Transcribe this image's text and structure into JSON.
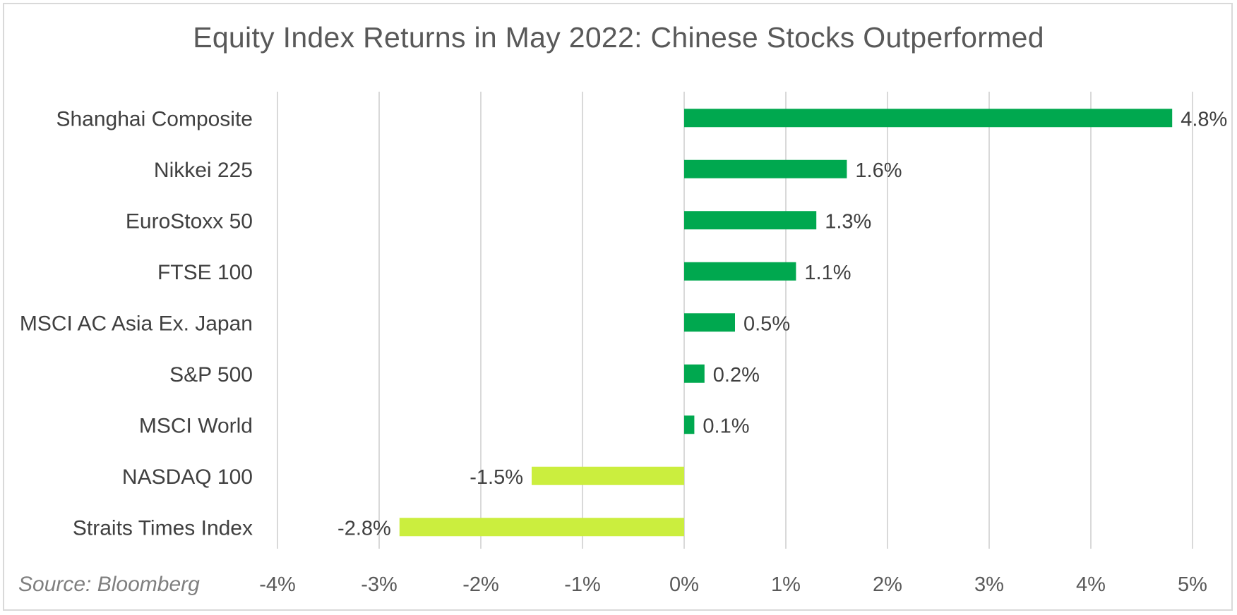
{
  "chart_data": {
    "type": "bar",
    "orientation": "horizontal",
    "title": "Equity Index Returns in May 2022: Chinese Stocks Outperformed",
    "source": "Source: Bloomberg",
    "categories": [
      "Shanghai Composite",
      "Nikkei 225",
      "EuroStoxx 50",
      "FTSE 100",
      "MSCI AC Asia Ex. Japan",
      "S&P 500",
      "MSCI World",
      "NASDAQ 100",
      "Straits Times Index"
    ],
    "values": [
      4.8,
      1.6,
      1.3,
      1.1,
      0.5,
      0.2,
      0.1,
      -1.5,
      -2.8
    ],
    "data_labels": [
      "4.8%",
      "1.6%",
      "1.3%",
      "1.1%",
      "0.5%",
      "0.2%",
      "0.1%",
      "-1.5%",
      "-2.8%"
    ],
    "xlim": [
      -4,
      5
    ],
    "x_ticks": [
      -4,
      -3,
      -2,
      -1,
      0,
      1,
      2,
      3,
      4,
      5
    ],
    "x_tick_labels": [
      "-4%",
      "-3%",
      "-2%",
      "-1%",
      "0%",
      "1%",
      "2%",
      "3%",
      "4%",
      "5%"
    ],
    "grid": "vertical",
    "legend": "none",
    "colors": {
      "positive": "#00a84f",
      "negative": "#cbee3e",
      "grid": "#d9d9d9"
    }
  }
}
